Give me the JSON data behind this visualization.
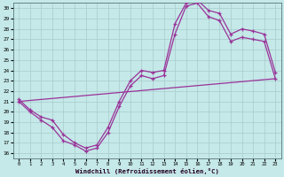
{
  "xlabel": "Windchill (Refroidissement éolien,°C)",
  "xlim": [
    -0.5,
    23.5
  ],
  "ylim": [
    15.5,
    30.5
  ],
  "xticks": [
    0,
    1,
    2,
    3,
    4,
    5,
    6,
    7,
    8,
    9,
    10,
    11,
    12,
    13,
    14,
    15,
    16,
    17,
    18,
    19,
    20,
    21,
    22,
    23
  ],
  "yticks": [
    16,
    17,
    18,
    19,
    20,
    21,
    22,
    23,
    24,
    25,
    26,
    27,
    28,
    29,
    30
  ],
  "bg_color": "#c5e8e8",
  "line_color": "#993399",
  "grid_color": "#a8cccc",
  "line1_x": [
    0,
    1,
    2,
    3,
    4,
    5,
    6,
    7,
    8,
    9,
    10,
    11,
    12,
    13,
    14,
    15,
    16,
    17,
    18,
    19,
    20,
    21,
    22,
    23
  ],
  "line1_y": [
    21.0,
    20.0,
    19.2,
    18.5,
    17.2,
    16.8,
    16.2,
    16.5,
    18.0,
    20.5,
    22.5,
    23.5,
    23.2,
    23.5,
    27.5,
    30.2,
    30.5,
    29.2,
    28.8,
    26.8,
    27.2,
    27.0,
    26.8,
    23.2
  ],
  "line2_x": [
    0,
    1,
    2,
    3,
    4,
    5,
    6,
    7,
    8,
    9,
    10,
    11,
    12,
    13,
    14,
    15,
    16,
    17,
    18,
    19,
    20,
    21,
    22,
    23
  ],
  "line2_y": [
    21.2,
    20.2,
    19.5,
    19.2,
    17.8,
    17.0,
    16.5,
    16.8,
    18.5,
    21.0,
    23.0,
    24.0,
    23.8,
    24.0,
    28.5,
    30.5,
    30.8,
    29.8,
    29.5,
    27.5,
    28.0,
    27.8,
    27.5,
    23.8
  ],
  "line3_x": [
    0,
    23
  ],
  "line3_y": [
    21.0,
    23.2
  ]
}
